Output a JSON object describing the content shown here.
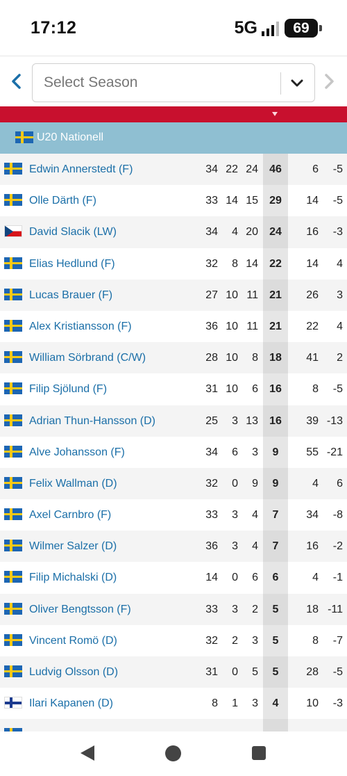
{
  "status_bar": {
    "time": "17:12",
    "network": "5G",
    "battery": "69"
  },
  "season_selector": {
    "placeholder": "Select Season"
  },
  "league": {
    "flag": "se",
    "name": "U20 Nationell"
  },
  "players": [
    {
      "flag": "se",
      "name": "Edwin Annerstedt (F)",
      "gp": "34",
      "g": "22",
      "a": "24",
      "tp": "46",
      "pim": "6",
      "pm": "-5"
    },
    {
      "flag": "se",
      "name": "Olle Därth (F)",
      "gp": "33",
      "g": "14",
      "a": "15",
      "tp": "29",
      "pim": "14",
      "pm": "-5"
    },
    {
      "flag": "cz",
      "name": "David Slacik (LW)",
      "gp": "34",
      "g": "4",
      "a": "20",
      "tp": "24",
      "pim": "16",
      "pm": "-3"
    },
    {
      "flag": "se",
      "name": "Elias Hedlund (F)",
      "gp": "32",
      "g": "8",
      "a": "14",
      "tp": "22",
      "pim": "14",
      "pm": "4"
    },
    {
      "flag": "se",
      "name": "Lucas Brauer (F)",
      "gp": "27",
      "g": "10",
      "a": "11",
      "tp": "21",
      "pim": "26",
      "pm": "3"
    },
    {
      "flag": "se",
      "name": "Alex Kristiansson (F)",
      "gp": "36",
      "g": "10",
      "a": "11",
      "tp": "21",
      "pim": "22",
      "pm": "4"
    },
    {
      "flag": "se",
      "name": "William Sörbrand (C/W)",
      "gp": "28",
      "g": "10",
      "a": "8",
      "tp": "18",
      "pim": "41",
      "pm": "2"
    },
    {
      "flag": "se",
      "name": "Filip Sjölund (F)",
      "gp": "31",
      "g": "10",
      "a": "6",
      "tp": "16",
      "pim": "8",
      "pm": "-5"
    },
    {
      "flag": "se",
      "name": "Adrian Thun-Hansson (D)",
      "gp": "25",
      "g": "3",
      "a": "13",
      "tp": "16",
      "pim": "39",
      "pm": "-13"
    },
    {
      "flag": "se",
      "name": "Alve Johansson (F)",
      "gp": "34",
      "g": "6",
      "a": "3",
      "tp": "9",
      "pim": "55",
      "pm": "-21"
    },
    {
      "flag": "se",
      "name": "Felix Wallman (D)",
      "gp": "32",
      "g": "0",
      "a": "9",
      "tp": "9",
      "pim": "4",
      "pm": "6"
    },
    {
      "flag": "se",
      "name": "Axel Carnbro (F)",
      "gp": "33",
      "g": "3",
      "a": "4",
      "tp": "7",
      "pim": "34",
      "pm": "-8"
    },
    {
      "flag": "se",
      "name": "Wilmer Salzer (D)",
      "gp": "36",
      "g": "3",
      "a": "4",
      "tp": "7",
      "pim": "16",
      "pm": "-2"
    },
    {
      "flag": "se",
      "name": "Filip Michalski (D)",
      "gp": "14",
      "g": "0",
      "a": "6",
      "tp": "6",
      "pim": "4",
      "pm": "-1"
    },
    {
      "flag": "se",
      "name": "Oliver Bengtsson (F)",
      "gp": "33",
      "g": "3",
      "a": "2",
      "tp": "5",
      "pim": "18",
      "pm": "-11"
    },
    {
      "flag": "se",
      "name": "Vincent Romö (D)",
      "gp": "32",
      "g": "2",
      "a": "3",
      "tp": "5",
      "pim": "8",
      "pm": "-7"
    },
    {
      "flag": "se",
      "name": "Ludvig Olsson (D)",
      "gp": "31",
      "g": "0",
      "a": "5",
      "tp": "5",
      "pim": "28",
      "pm": "-5"
    },
    {
      "flag": "fi",
      "name": "Ilari Kapanen (D)",
      "gp": "8",
      "g": "1",
      "a": "3",
      "tp": "4",
      "pim": "10",
      "pm": "-3"
    },
    {
      "flag": "se",
      "name": "",
      "gp": "",
      "g": "",
      "a": "",
      "tp": "",
      "pim": "",
      "pm": ""
    }
  ],
  "colors": {
    "header_red": "#c8102e",
    "league_row": "#8fbfd2",
    "link_blue": "#1b6fa8"
  }
}
